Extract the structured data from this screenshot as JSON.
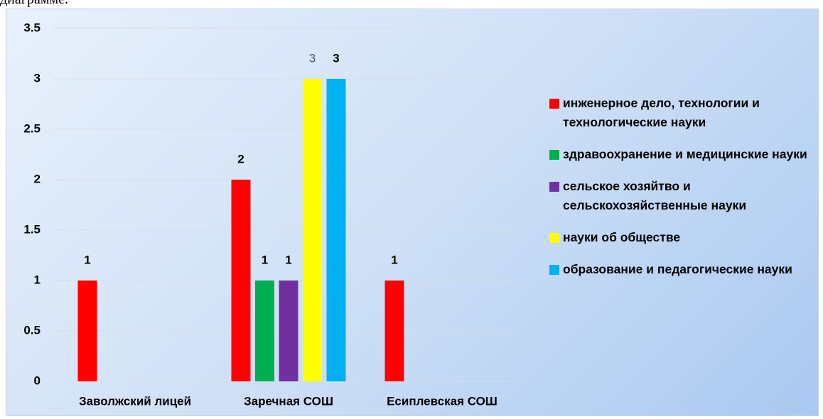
{
  "caption": "диаграмме.",
  "chart_data": {
    "type": "bar",
    "categories": [
      "Заволжский лицей",
      "Заречная СОШ",
      "Есиплевская СОШ"
    ],
    "series": [
      {
        "name": "инженерное дело, технологии и технологические науки",
        "color": "#ff0000",
        "values": [
          1,
          2,
          1
        ]
      },
      {
        "name": "здравоохранение и медицинские науки",
        "color": "#00b050",
        "values": [
          null,
          1,
          null
        ]
      },
      {
        "name": "сельское хозяйтво и сельскохозяйственные науки",
        "color": "#7030a0",
        "values": [
          null,
          1,
          null
        ]
      },
      {
        "name": "науки об обществе",
        "color": "#ffff00",
        "values": [
          null,
          3,
          null
        ]
      },
      {
        "name": "образование и педагогические науки",
        "color": "#00b0f0",
        "values": [
          null,
          3,
          null
        ]
      }
    ],
    "ylim": [
      0,
      3.5
    ],
    "yticks": [
      0,
      0.5,
      1,
      1.5,
      2,
      2.5,
      3,
      3.5
    ],
    "grid": true,
    "legend": "right"
  }
}
